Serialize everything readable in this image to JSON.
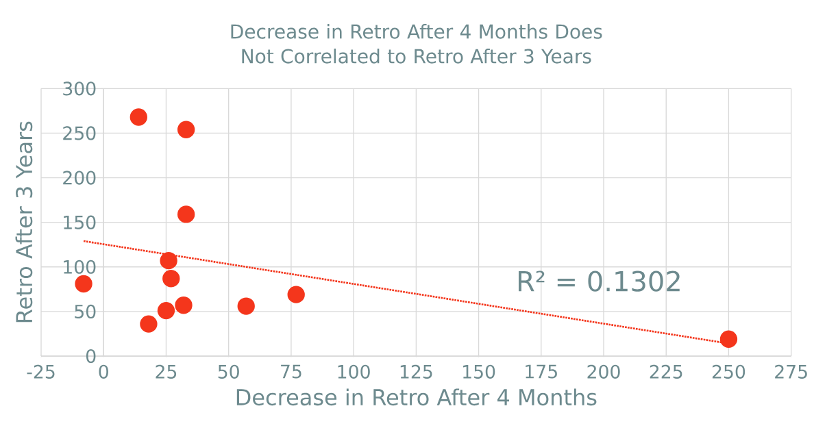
{
  "chart_data": {
    "type": "scatter",
    "title": "Decrease in Retro After 4 Months Does Not Correlated to Retro After 3 Years",
    "xlabel": "Decrease in Retro After 4 Months",
    "ylabel": "Retro After 3 Years",
    "xlim": [
      -25,
      275
    ],
    "ylim": [
      0,
      300
    ],
    "xticks": [
      -25,
      0,
      25,
      50,
      75,
      100,
      125,
      150,
      175,
      200,
      225,
      250,
      275
    ],
    "yticks": [
      0,
      50,
      100,
      150,
      200,
      250,
      300
    ],
    "grid": true,
    "annotations": [
      "R² = 0.1302"
    ],
    "series": [
      {
        "color": "#f4361c",
        "marker": "circle",
        "x": [
          -8,
          14,
          33,
          33,
          26,
          27,
          25,
          32,
          18,
          57,
          77,
          250
        ],
        "values": [
          81,
          268,
          254,
          159,
          107,
          87,
          51,
          57,
          36,
          56,
          69,
          19
        ]
      },
      {
        "type": "line",
        "color": "#f4361c",
        "line_style": "dotted",
        "marker": "none",
        "x": [
          -8,
          248
        ],
        "values": [
          129,
          15
        ]
      }
    ]
  }
}
